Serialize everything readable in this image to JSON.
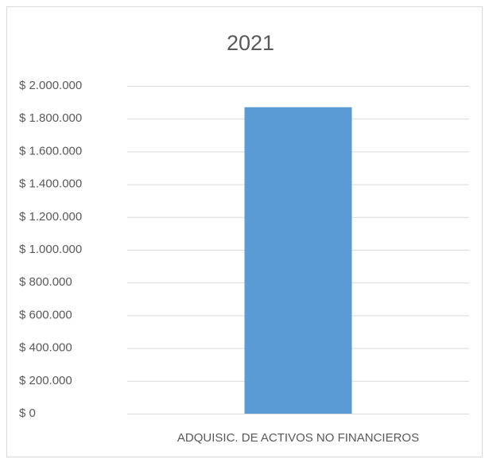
{
  "chart_data": {
    "type": "bar",
    "title": "2021",
    "categories": [
      "ADQUISIC. DE ACTIVOS NO FINANCIEROS"
    ],
    "values": [
      1870000
    ],
    "color": "#5b9bd5",
    "ylim": [
      0,
      2000000
    ],
    "yticks": [
      {
        "value": 0,
        "label": "$ 0"
      },
      {
        "value": 200000,
        "label": "$ 200.000"
      },
      {
        "value": 400000,
        "label": "$ 400.000"
      },
      {
        "value": 600000,
        "label": "$ 600.000"
      },
      {
        "value": 800000,
        "label": "$ 800.000"
      },
      {
        "value": 1000000,
        "label": "$ 1.000.000"
      },
      {
        "value": 1200000,
        "label": "$ 1.200.000"
      },
      {
        "value": 1400000,
        "label": "$ 1.400.000"
      },
      {
        "value": 1600000,
        "label": "$ 1.600.000"
      },
      {
        "value": 1800000,
        "label": "$ 1.800.000"
      },
      {
        "value": 2000000,
        "label": "$ 2.000.000"
      }
    ],
    "grid": true
  }
}
